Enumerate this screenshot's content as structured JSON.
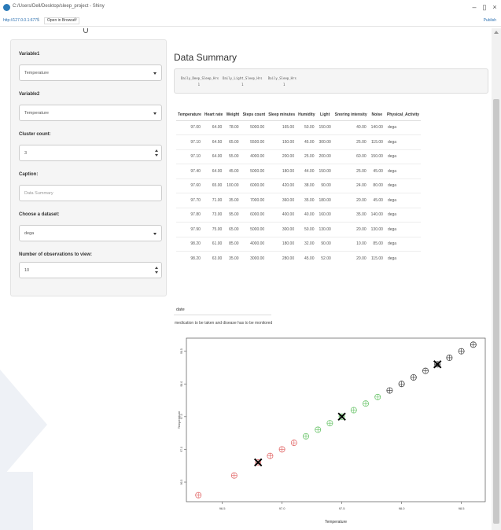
{
  "window": {
    "title": "C:/Users/Dell/Desktop/sleep_project - Shiny",
    "minimize": "–",
    "restore": "▯",
    "close": "×"
  },
  "address": {
    "url": "http://127.0.0.1:6775",
    "separator": "|",
    "open_in_browser": "Open in Browser",
    "refresh": "⟳",
    "publish": "Publish"
  },
  "sidebar": {
    "variable1": {
      "label": "Variable1",
      "value": "Temperature"
    },
    "variable2": {
      "label": "Variable2",
      "value": "Temperature"
    },
    "cluster_count": {
      "label": "Cluster count:",
      "value": "3"
    },
    "caption": {
      "label": "Caption:",
      "placeholder": "Data Summary"
    },
    "dataset": {
      "label": "Choose a dataset:",
      "value": "dega"
    },
    "observations": {
      "label": "Number of observations to view:",
      "value": "10"
    }
  },
  "main": {
    "title": "Data Summary",
    "summary_lines": [
      "Daily_Deep_Sleep_Hrs  Daily_Light_Sleep_Hrs   Daily_Sleep_Hrs",
      "         1                      1                     1"
    ],
    "table": {
      "headers": [
        "Temperature",
        "Heart rate",
        "Weight",
        "Steps count",
        "Sleep minutes",
        "Humidity",
        "Light",
        "Snoring intensity",
        "Noise",
        "Physical_Activity"
      ],
      "rows": [
        [
          "97.00",
          "64.00",
          "78.00",
          "5000.00",
          "165.00",
          "50.00",
          "150.00",
          "40.00",
          "140.00",
          "dega"
        ],
        [
          "97.10",
          "64.50",
          "65.00",
          "5500.00",
          "150.00",
          "45.00",
          "300.00",
          "25.00",
          "115.00",
          "dega"
        ],
        [
          "97.10",
          "64.00",
          "55.00",
          "4000.00",
          "200.00",
          "25.00",
          "200.00",
          "60.00",
          "150.00",
          "dega"
        ],
        [
          "97.40",
          "64.00",
          "45.00",
          "5000.00",
          "180.00",
          "44.00",
          "150.00",
          "25.00",
          "45.00",
          "dega"
        ],
        [
          "97.60",
          "65.00",
          "100.00",
          "6000.00",
          "420.00",
          "38.00",
          "90.00",
          "24.00",
          "80.00",
          "dega"
        ],
        [
          "97.70",
          "71.00",
          "35.00",
          "7000.00",
          "360.00",
          "35.00",
          "180.00",
          "20.00",
          "45.00",
          "dega"
        ],
        [
          "97.80",
          "73.00",
          "95.00",
          "6000.00",
          "400.00",
          "40.00",
          "160.00",
          "35.00",
          "140.00",
          "dega"
        ],
        [
          "97.90",
          "75.00",
          "65.00",
          "5000.00",
          "300.00",
          "50.00",
          "130.00",
          "20.00",
          "130.00",
          "dega"
        ],
        [
          "98.20",
          "61.00",
          "85.00",
          "4000.00",
          "180.00",
          "32.00",
          "90.00",
          "10.00",
          "85.00",
          "dega"
        ],
        [
          "98.20",
          "63.00",
          "35.00",
          "3000.00",
          "280.00",
          "45.00",
          "52.00",
          "20.00",
          "115.00",
          "dega"
        ]
      ]
    },
    "date_label": "date",
    "note": "medication to be taken and disease has to be monitored"
  },
  "chart_data": {
    "type": "scatter",
    "title": "",
    "xlabel": "Temperature",
    "ylabel": "Temperature",
    "xlim": [
      96.2,
      98.7
    ],
    "ylim": [
      96.2,
      98.7
    ],
    "xticks": [
      "96.5",
      "97.0",
      "97.5",
      "98.0",
      "98.5"
    ],
    "yticks": [
      "96.5",
      "97.0",
      "97.5",
      "98.0",
      "98.5"
    ],
    "grid": false,
    "series": [
      {
        "color": "#e06060",
        "points": [
          [
            96.3,
            96.3
          ],
          [
            96.6,
            96.6
          ],
          [
            96.8,
            96.8
          ],
          [
            96.9,
            96.9
          ],
          [
            97.0,
            97.0
          ],
          [
            97.1,
            97.1
          ]
        ]
      },
      {
        "color": "#60c060",
        "points": [
          [
            97.2,
            97.2
          ],
          [
            97.3,
            97.3
          ],
          [
            97.4,
            97.4
          ],
          [
            97.5,
            97.5
          ],
          [
            97.6,
            97.6
          ],
          [
            97.7,
            97.7
          ],
          [
            97.8,
            97.8
          ]
        ]
      },
      {
        "color": "#333333",
        "points": [
          [
            97.9,
            97.9
          ],
          [
            98.0,
            98.0
          ],
          [
            98.1,
            98.1
          ],
          [
            98.2,
            98.2
          ],
          [
            98.3,
            98.3
          ],
          [
            98.4,
            98.4
          ],
          [
            98.5,
            98.5
          ],
          [
            98.6,
            98.6
          ]
        ]
      }
    ],
    "centers": [
      [
        96.8,
        96.8
      ],
      [
        97.5,
        97.5
      ],
      [
        98.3,
        98.3
      ]
    ]
  }
}
